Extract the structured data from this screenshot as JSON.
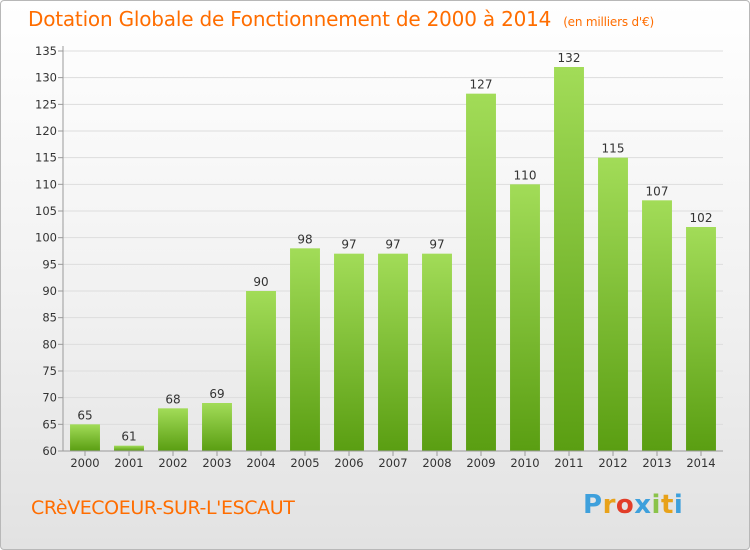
{
  "header": {
    "title": "Dotation Globale de Fonctionnement de 2000 à 2014",
    "subtitle": "(en milliers d'€)"
  },
  "footer": {
    "commune": "CRèVECOEUR-SUR-L'ESCAUT",
    "logo_letters": [
      "P",
      "r",
      "o",
      "x",
      "i",
      "t",
      "i"
    ],
    "logo_colors": [
      "#3ea0dc",
      "#e8a21a",
      "#e23d28",
      "#3ea0dc",
      "#8bc34a",
      "#e8a21a",
      "#3ea0dc"
    ]
  },
  "colors": {
    "accent": "#ff6d00",
    "bar_light": "#a2dc58",
    "bar_dark": "#5a9e12",
    "grid": "#dddddd",
    "axis": "#9a9a9a"
  },
  "chart_data": {
    "type": "bar",
    "categories": [
      "2000",
      "2001",
      "2002",
      "2003",
      "2004",
      "2005",
      "2006",
      "2007",
      "2008",
      "2009",
      "2010",
      "2011",
      "2012",
      "2013",
      "2014"
    ],
    "values": [
      65,
      61,
      68,
      69,
      90,
      98,
      97,
      97,
      97,
      127,
      110,
      132,
      115,
      107,
      102
    ],
    "value_labels": [
      "65",
      "61",
      "68",
      "69",
      "90",
      "98",
      "97",
      "97",
      "97",
      "127",
      "110",
      "132",
      "115",
      "107",
      "102"
    ],
    "yticks": [
      "60",
      "65",
      "70",
      "75",
      "80",
      "85",
      "90",
      "95",
      "100",
      "105",
      "110",
      "115",
      "120",
      "125",
      "130",
      "135"
    ],
    "ylim": [
      60,
      135
    ],
    "title": "Dotation Globale de Fonctionnement de 2000 à 2014",
    "xlabel": "",
    "ylabel": "",
    "grid": true
  }
}
